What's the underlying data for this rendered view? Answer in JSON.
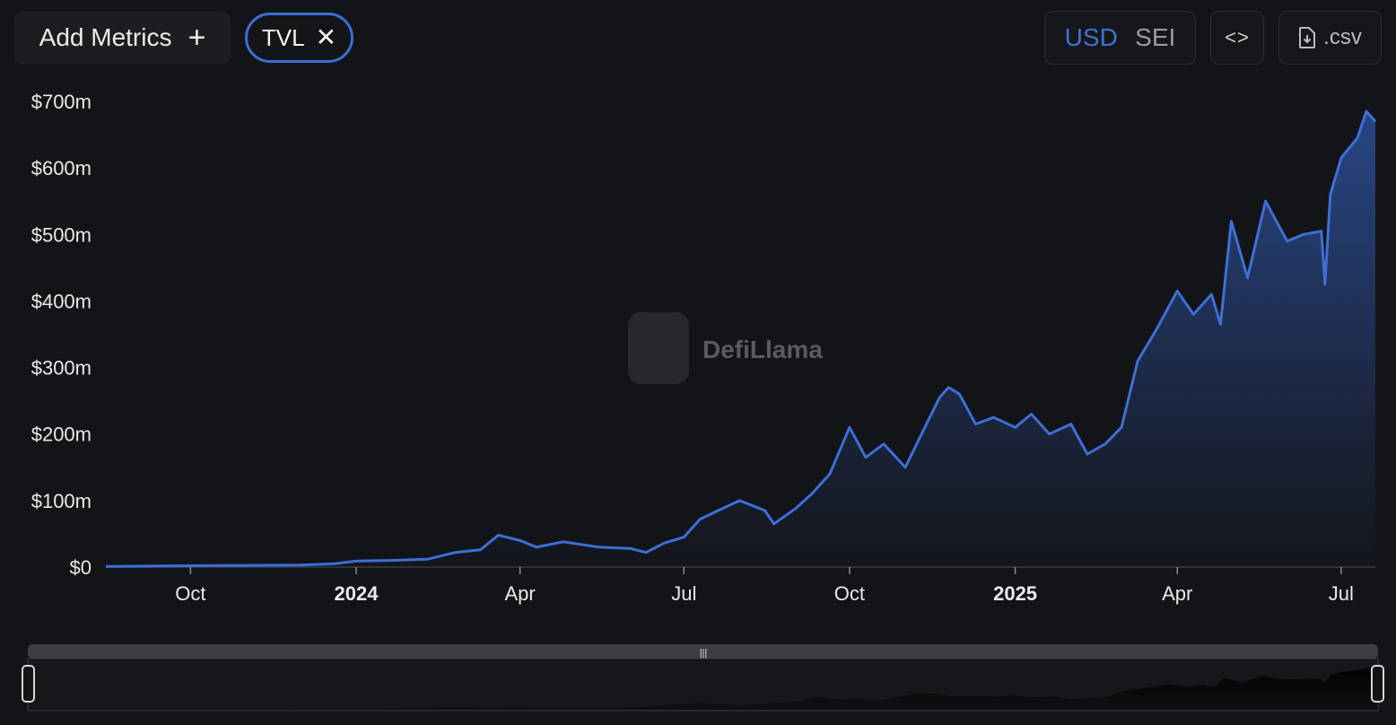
{
  "toolbar": {
    "add_metrics_label": "Add Metrics",
    "add_icon": "+",
    "active_metric": "TVL",
    "remove_icon": "✕",
    "currency_options": [
      "USD",
      "SEI"
    ],
    "selected_currency": "USD",
    "embed_icon": "<>",
    "csv_label": ".csv"
  },
  "watermark": "DefiLlama",
  "colors": {
    "line": "#3d6fd8",
    "active": "#3d74da",
    "background": "#131417"
  },
  "chart_data": {
    "type": "area",
    "ylim": [
      0,
      700
    ],
    "yticks": [
      0,
      100,
      200,
      300,
      400,
      500,
      600,
      700
    ],
    "ytick_labels": [
      "$0",
      "$100m",
      "$200m",
      "$300m",
      "$400m",
      "$500m",
      "$600m",
      "$700m"
    ],
    "xlim": [
      "2023-08-15",
      "2025-07-20"
    ],
    "xticks": [
      {
        "date": "2023-10-01",
        "label": "Oct",
        "bold": false
      },
      {
        "date": "2024-01-01",
        "label": "2024",
        "bold": true
      },
      {
        "date": "2024-04-01",
        "label": "Apr",
        "bold": false
      },
      {
        "date": "2024-07-01",
        "label": "Jul",
        "bold": false
      },
      {
        "date": "2024-10-01",
        "label": "Oct",
        "bold": false
      },
      {
        "date": "2025-01-01",
        "label": "2025",
        "bold": true
      },
      {
        "date": "2025-04-01",
        "label": "Apr",
        "bold": false
      },
      {
        "date": "2025-07-01",
        "label": "Jul",
        "bold": false
      }
    ],
    "series": [
      {
        "name": "TVL",
        "points": [
          [
            "2023-08-15",
            1
          ],
          [
            "2023-10-01",
            2
          ],
          [
            "2023-12-01",
            3
          ],
          [
            "2023-12-20",
            5
          ],
          [
            "2024-01-01",
            9
          ],
          [
            "2024-01-20",
            10
          ],
          [
            "2024-02-10",
            12
          ],
          [
            "2024-02-25",
            22
          ],
          [
            "2024-03-10",
            26
          ],
          [
            "2024-03-20",
            48
          ],
          [
            "2024-04-01",
            40
          ],
          [
            "2024-04-10",
            30
          ],
          [
            "2024-04-25",
            38
          ],
          [
            "2024-05-15",
            30
          ],
          [
            "2024-06-01",
            28
          ],
          [
            "2024-06-10",
            22
          ],
          [
            "2024-06-20",
            36
          ],
          [
            "2024-07-01",
            45
          ],
          [
            "2024-07-10",
            72
          ],
          [
            "2024-07-20",
            85
          ],
          [
            "2024-08-01",
            100
          ],
          [
            "2024-08-15",
            85
          ],
          [
            "2024-08-20",
            65
          ],
          [
            "2024-09-01",
            88
          ],
          [
            "2024-09-10",
            110
          ],
          [
            "2024-09-20",
            140
          ],
          [
            "2024-10-01",
            210
          ],
          [
            "2024-10-10",
            165
          ],
          [
            "2024-10-20",
            185
          ],
          [
            "2024-11-01",
            150
          ],
          [
            "2024-11-10",
            200
          ],
          [
            "2024-11-20",
            255
          ],
          [
            "2024-11-25",
            270
          ],
          [
            "2024-12-01",
            260
          ],
          [
            "2024-12-10",
            215
          ],
          [
            "2024-12-20",
            225
          ],
          [
            "2025-01-01",
            210
          ],
          [
            "2025-01-10",
            230
          ],
          [
            "2025-01-20",
            200
          ],
          [
            "2025-02-01",
            215
          ],
          [
            "2025-02-10",
            170
          ],
          [
            "2025-02-20",
            185
          ],
          [
            "2025-03-01",
            210
          ],
          [
            "2025-03-10",
            310
          ],
          [
            "2025-03-20",
            355
          ],
          [
            "2025-04-01",
            415
          ],
          [
            "2025-04-10",
            380
          ],
          [
            "2025-04-20",
            410
          ],
          [
            "2025-04-25",
            365
          ],
          [
            "2025-05-01",
            520
          ],
          [
            "2025-05-10",
            435
          ],
          [
            "2025-05-20",
            550
          ],
          [
            "2025-06-01",
            490
          ],
          [
            "2025-06-10",
            500
          ],
          [
            "2025-06-20",
            505
          ],
          [
            "2025-06-22",
            425
          ],
          [
            "2025-06-25",
            560
          ],
          [
            "2025-07-01",
            615
          ],
          [
            "2025-07-10",
            645
          ],
          [
            "2025-07-15",
            685
          ],
          [
            "2025-07-20",
            670
          ]
        ]
      }
    ]
  }
}
